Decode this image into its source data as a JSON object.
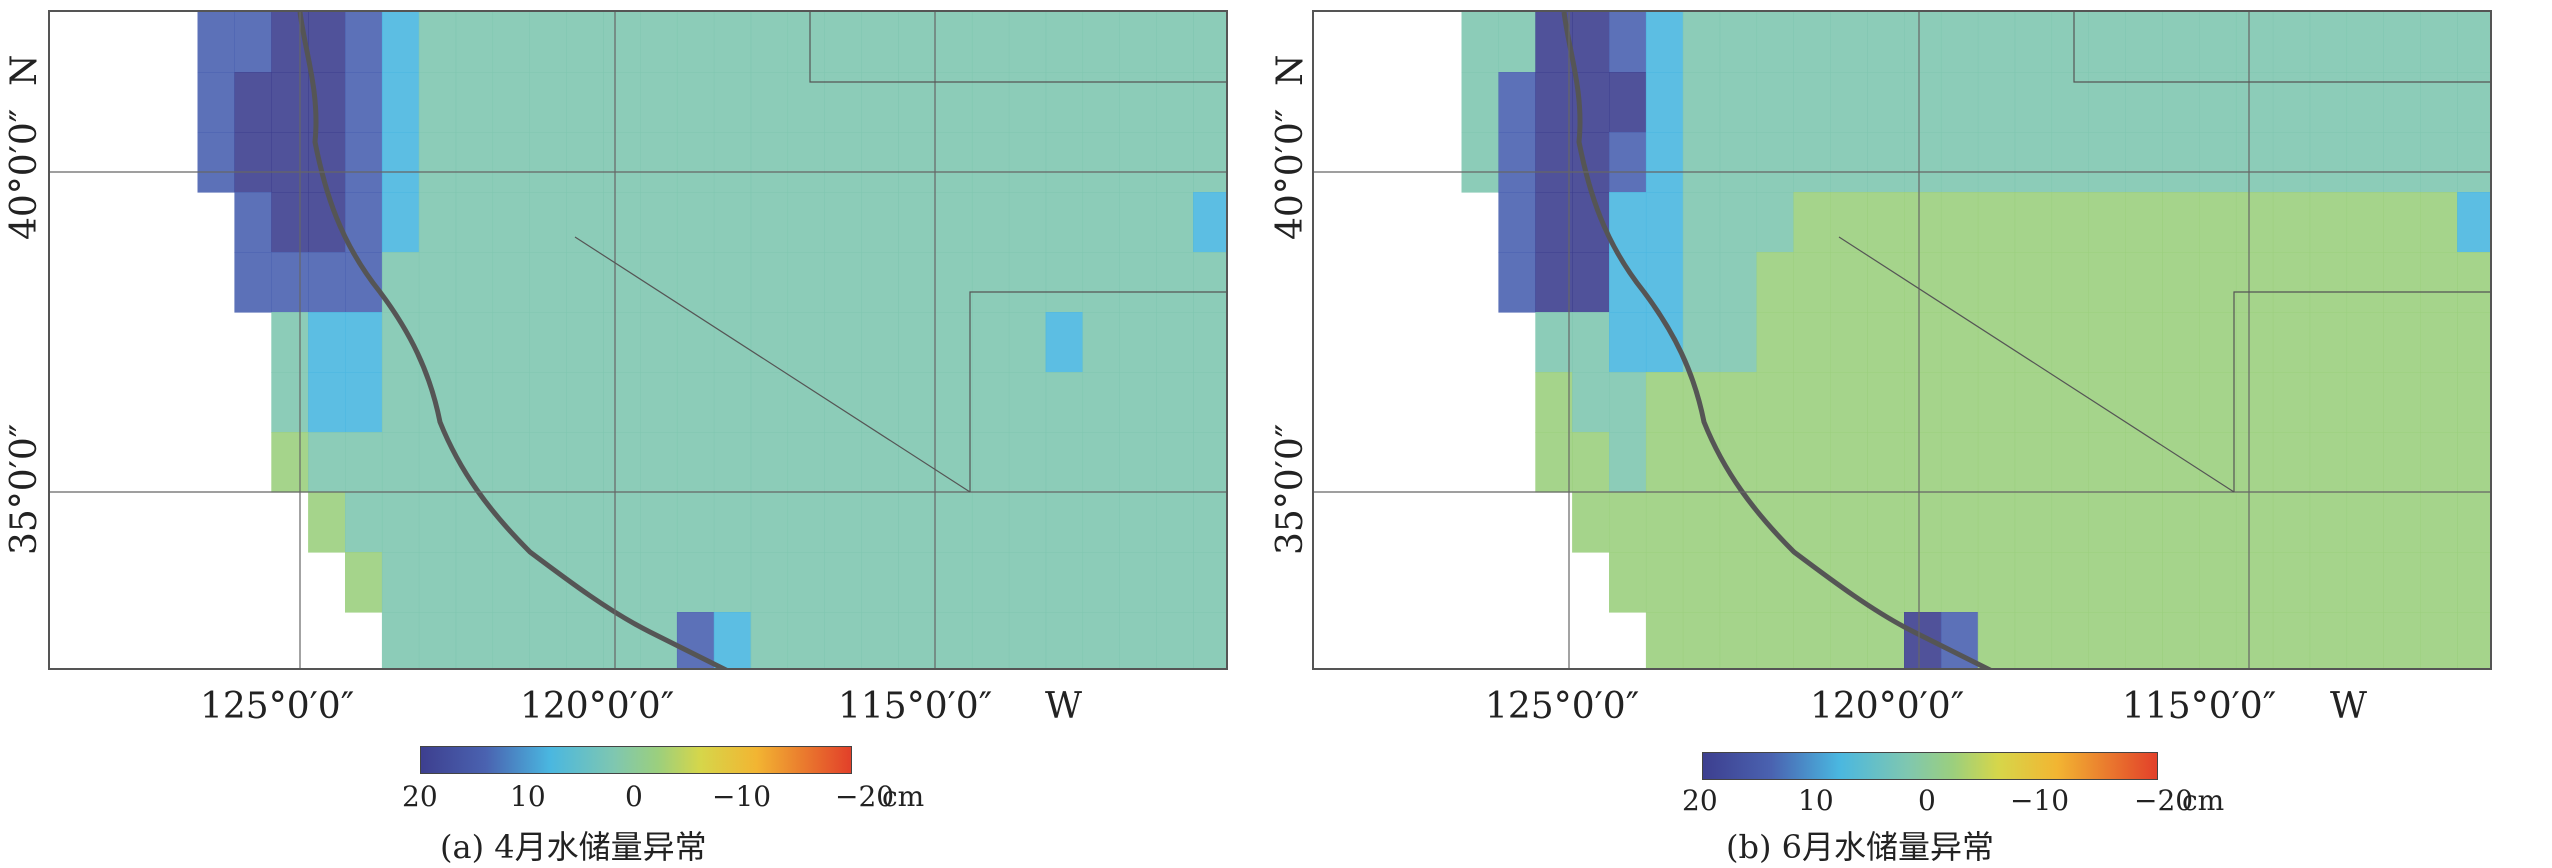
{
  "panels": [
    {
      "id": "a",
      "caption": "(a) 4月水储量异常",
      "lon_labels": [
        "125°0′0″",
        "120°0′0″",
        "115°0′0″"
      ],
      "lon_dir": "W",
      "lat_labels": [
        "40°0′0″",
        "35°0′0″"
      ],
      "lat_dir": "N",
      "colorbar_ticks": [
        "20",
        "10",
        "0",
        "−10",
        "−20"
      ],
      "colorbar_unit": "cm"
    },
    {
      "id": "b",
      "caption": "(b) 6月水储量异常",
      "lon_labels": [
        "125°0′0″",
        "120°0′0″",
        "115°0′0″"
      ],
      "lon_dir": "W",
      "lat_labels": [
        "40°0′0″",
        "35°0′0″"
      ],
      "lat_dir": "N",
      "colorbar_ticks": [
        "20",
        "10",
        "0",
        "−10",
        "−20"
      ],
      "colorbar_unit": "cm"
    }
  ],
  "colors": {
    "strong_positive": "#3d3f8f",
    "positive": "#4a62b0",
    "mild_positive": "#4ab7e0",
    "neutral": "#7fc7b0",
    "mild_negative": "#9bcf7e",
    "negative": "#d6d64a",
    "strong_negative": "#e2402a"
  }
}
